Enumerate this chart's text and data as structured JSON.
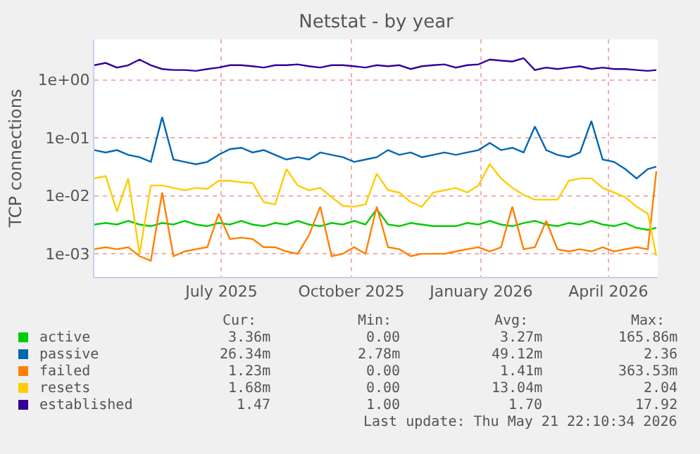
{
  "chart_data": {
    "type": "line",
    "title": "Netstat - by year",
    "ylabel": "TCP connections",
    "log": "y",
    "grid": true,
    "legend": "bottom",
    "marker": "none",
    "line_style": "solid",
    "xlim": [
      "2025-04-17",
      "2026-05-21"
    ],
    "xticks": [
      {
        "value": "2025-07-16",
        "label": "July 2025"
      },
      {
        "value": "2025-10-16",
        "label": "October 2025"
      },
      {
        "value": "2026-01-16",
        "label": "January 2026"
      },
      {
        "value": "2026-04-16",
        "label": "April 2026"
      }
    ],
    "ylim": [
      0.0004,
      5
    ],
    "yticks": [
      {
        "value": 0.001,
        "label": "1e-03"
      },
      {
        "value": 0.01,
        "label": "1e-02"
      },
      {
        "value": 0.1,
        "label": "1e-01"
      },
      {
        "value": 1,
        "label": "1e+00"
      }
    ],
    "x": [
      "2025-04-17",
      "2025-04-25",
      "2025-05-03",
      "2025-05-11",
      "2025-05-19",
      "2025-05-27",
      "2025-06-04",
      "2025-06-12",
      "2025-06-20",
      "2025-06-28",
      "2025-07-06",
      "2025-07-14",
      "2025-07-22",
      "2025-07-30",
      "2025-08-07",
      "2025-08-15",
      "2025-08-23",
      "2025-08-31",
      "2025-09-08",
      "2025-09-16",
      "2025-09-24",
      "2025-10-02",
      "2025-10-10",
      "2025-10-18",
      "2025-10-26",
      "2025-11-03",
      "2025-11-11",
      "2025-11-19",
      "2025-11-27",
      "2025-12-05",
      "2025-12-13",
      "2025-12-21",
      "2025-12-29",
      "2026-01-06",
      "2026-01-14",
      "2026-01-22",
      "2026-01-30",
      "2026-02-07",
      "2026-02-15",
      "2026-02-23",
      "2026-03-03",
      "2026-03-11",
      "2026-03-19",
      "2026-03-27",
      "2026-04-04",
      "2026-04-12",
      "2026-04-20",
      "2026-04-28",
      "2026-05-06",
      "2026-05-14",
      "2026-05-20"
    ],
    "series": [
      {
        "name": "active",
        "color": "#00cc00",
        "values": [
          0.0032,
          0.0034,
          0.0032,
          0.0037,
          0.0032,
          0.003,
          0.0034,
          0.0032,
          0.0037,
          0.0032,
          0.003,
          0.0034,
          0.0032,
          0.0037,
          0.0032,
          0.003,
          0.0034,
          0.0032,
          0.0037,
          0.0032,
          0.003,
          0.0034,
          0.0032,
          0.0037,
          0.0032,
          0.0059,
          0.0032,
          0.003,
          0.0034,
          0.0032,
          0.003,
          0.003,
          0.003,
          0.0034,
          0.0032,
          0.0037,
          0.0032,
          0.003,
          0.0034,
          0.0037,
          0.0032,
          0.003,
          0.0034,
          0.0032,
          0.0037,
          0.0032,
          0.003,
          0.0034,
          0.0028,
          0.0026,
          0.0028
        ]
      },
      {
        "name": "passive",
        "color": "#0066b3",
        "values": [
          0.0615,
          0.056,
          0.0615,
          0.051,
          0.0464,
          0.0385,
          0.228,
          0.0423,
          0.0385,
          0.035,
          0.0385,
          0.051,
          0.0638,
          0.0675,
          0.056,
          0.0615,
          0.051,
          0.0423,
          0.0464,
          0.0423,
          0.056,
          0.051,
          0.0464,
          0.0385,
          0.0423,
          0.0464,
          0.0615,
          0.051,
          0.056,
          0.0464,
          0.051,
          0.056,
          0.051,
          0.056,
          0.0615,
          0.0814,
          0.0615,
          0.0675,
          0.056,
          0.157,
          0.0615,
          0.051,
          0.0464,
          0.056,
          0.196,
          0.0423,
          0.0385,
          0.029,
          0.02,
          0.029,
          0.0319
        ]
      },
      {
        "name": "failed",
        "color": "#ff8000",
        "values": [
          0.0012,
          0.0013,
          0.0012,
          0.0013,
          0.00091,
          0.00076,
          0.0114,
          0.00091,
          0.0011,
          0.0012,
          0.0013,
          0.0049,
          0.0018,
          0.0019,
          0.0018,
          0.0013,
          0.0013,
          0.0011,
          0.001,
          0.0021,
          0.0065,
          0.00091,
          0.001,
          0.0013,
          0.001,
          0.0065,
          0.0013,
          0.0012,
          0.00091,
          0.001,
          0.001,
          0.001,
          0.0011,
          0.0012,
          0.0013,
          0.0011,
          0.0013,
          0.0065,
          0.0012,
          0.0013,
          0.0037,
          0.0012,
          0.0011,
          0.0012,
          0.0011,
          0.0013,
          0.0011,
          0.0012,
          0.0013,
          0.0012,
          0.0265
        ]
      },
      {
        "name": "resets",
        "color": "#ffcc00",
        "values": [
          0.02,
          0.0219,
          0.0054,
          0.02,
          0.001,
          0.0151,
          0.0151,
          0.0137,
          0.0125,
          0.0137,
          0.0132,
          0.0182,
          0.0182,
          0.0172,
          0.0166,
          0.0078,
          0.0071,
          0.029,
          0.0151,
          0.0125,
          0.0137,
          0.0095,
          0.0067,
          0.0065,
          0.0071,
          0.0241,
          0.0125,
          0.0114,
          0.0078,
          0.0065,
          0.0114,
          0.0125,
          0.0137,
          0.0114,
          0.0151,
          0.035,
          0.02,
          0.0137,
          0.0104,
          0.0086,
          0.0086,
          0.0086,
          0.0182,
          0.02,
          0.02,
          0.0137,
          0.0114,
          0.0095,
          0.0065,
          0.0049,
          0.00091
        ]
      },
      {
        "name": "established",
        "color": "#330099",
        "values": [
          1.79,
          1.96,
          1.63,
          1.79,
          2.24,
          1.79,
          1.54,
          1.48,
          1.48,
          1.43,
          1.54,
          1.63,
          1.79,
          1.79,
          1.72,
          1.63,
          1.79,
          1.79,
          1.85,
          1.72,
          1.63,
          1.79,
          1.79,
          1.72,
          1.63,
          1.79,
          1.72,
          1.79,
          1.54,
          1.72,
          1.79,
          1.85,
          1.63,
          1.79,
          1.85,
          2.24,
          2.15,
          2.08,
          2.37,
          1.48,
          1.63,
          1.54,
          1.63,
          1.72,
          1.54,
          1.63,
          1.54,
          1.54,
          1.48,
          1.43,
          1.48
        ]
      }
    ],
    "annotations": [
      "Cur:",
      "Min:",
      "Avg:",
      "Max:",
      "3.36m",
      "0.00",
      "3.27m",
      "165.86m",
      "26.34m",
      "2.78m",
      "49.12m",
      "2.36",
      "1.23m",
      "0.00",
      "1.41m",
      "363.53m",
      "1.68m",
      "0.00",
      "13.04m",
      "2.04",
      "1.47",
      "1.00",
      "1.70",
      "17.92",
      "Last update: Thu May 21 22:10:34 2026"
    ]
  }
}
